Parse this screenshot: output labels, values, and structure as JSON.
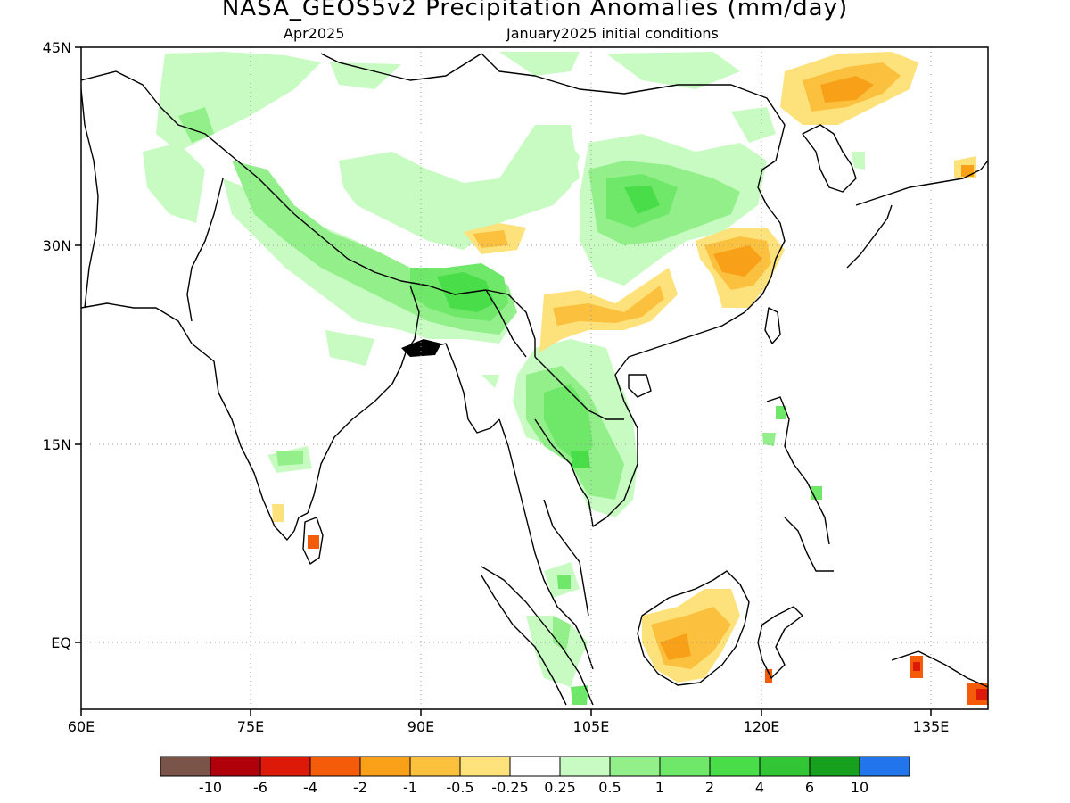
{
  "title": "NASA_GEOS5v2 Precipitation Anomalies (mm/day)",
  "subtitle_left": "Apr2025",
  "subtitle_right": "January2025 initial conditions",
  "axes": {
    "lat_labels": [
      "45N",
      "30N",
      "15N",
      "EQ"
    ],
    "lon_labels": [
      "60E",
      "75E",
      "90E",
      "105E",
      "120E",
      "135E"
    ],
    "lat_range": [
      -5,
      45
    ],
    "lon_range": [
      60,
      140
    ],
    "grid": "dotted"
  },
  "colorbar": {
    "colors": [
      "#7a5448",
      "#b0000a",
      "#dd1a0a",
      "#f55c0a",
      "#f9a019",
      "#fbc13e",
      "#fde27c",
      "#ffffff",
      "#c7fbc2",
      "#92ef8a",
      "#6fe86a",
      "#49dd4a",
      "#32c535",
      "#17a01d",
      "#2375ec"
    ],
    "labels": [
      "-10",
      "-6",
      "-4",
      "-2",
      "-1",
      "-0.5",
      "-0.25",
      "0.25",
      "0.5",
      "1",
      "2",
      "4",
      "6",
      "10"
    ]
  },
  "legend_colors": {
    "wet_light": "#c7fbc2",
    "wet_mid": "#92ef8a",
    "wet_strong": "#6fe86a",
    "wet_heavy": "#49dd4a",
    "dry_light": "#fde27c",
    "dry_mid": "#fbc13e",
    "dry_strong": "#f9a019",
    "dry_heavy": "#f55c0a",
    "dry_extreme": "#dd1a0a"
  }
}
